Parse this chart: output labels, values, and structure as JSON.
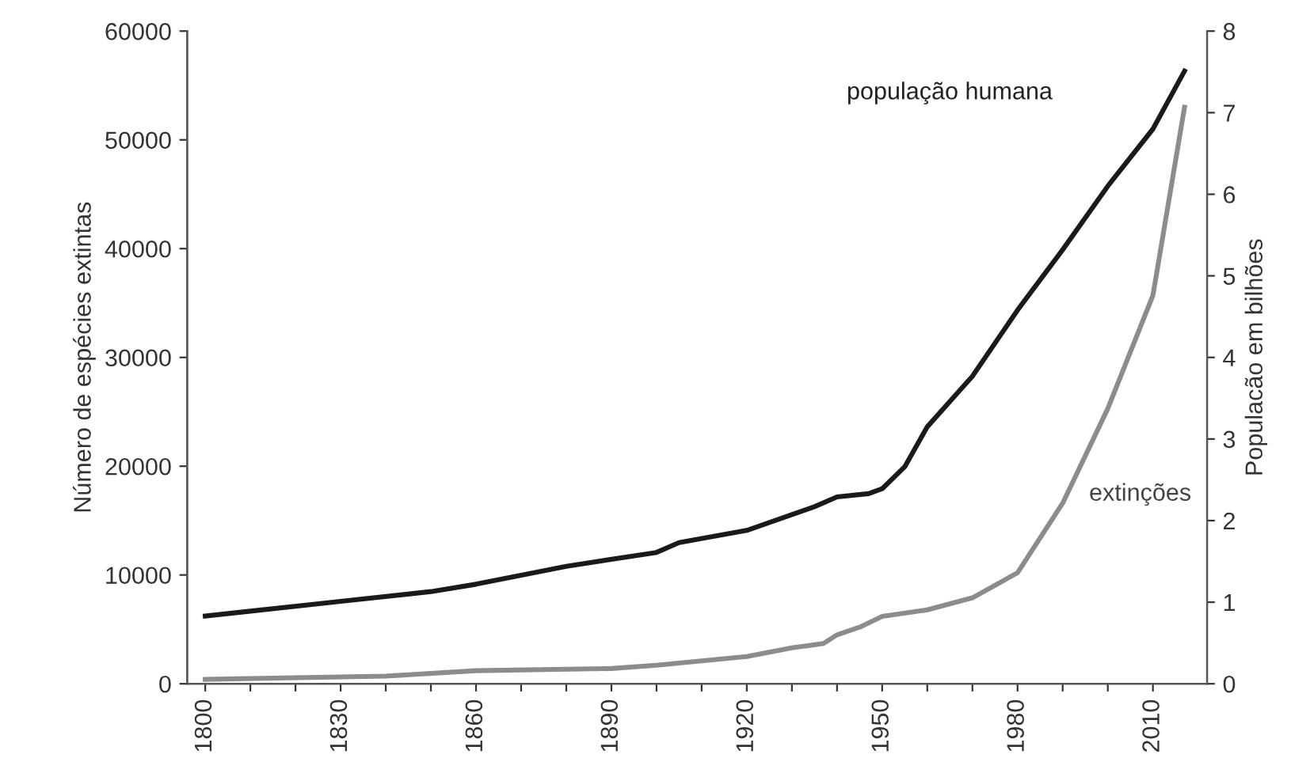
{
  "chart_data": {
    "type": "line",
    "xlabel": null,
    "ylabel": "Número de espécies extintas",
    "y2label": "Populacão em bilhões",
    "xlim": [
      1796,
      2022
    ],
    "ylim": [
      0,
      60000
    ],
    "y2lim": [
      0,
      8
    ],
    "xticks": [
      1800,
      {
        "value": 1810,
        "label": null
      },
      {
        "value": 1820,
        "label": null
      },
      1830,
      {
        "value": 1840,
        "label": null
      },
      {
        "value": 1850,
        "label": null
      },
      1860,
      {
        "value": 1870,
        "label": null
      },
      {
        "value": 1880,
        "label": null
      },
      1890,
      {
        "value": 1900,
        "label": null
      },
      {
        "value": 1910,
        "label": null
      },
      1920,
      {
        "value": 1930,
        "label": null
      },
      {
        "value": 1940,
        "label": null
      },
      1950,
      {
        "value": 1960,
        "label": null
      },
      {
        "value": 1970,
        "label": null
      },
      1980,
      {
        "value": 1990,
        "label": null
      },
      {
        "value": 2000,
        "label": null
      },
      2010
    ],
    "yticks": [
      0,
      10000,
      20000,
      30000,
      40000,
      50000,
      60000
    ],
    "y2ticks": [
      0,
      1,
      2,
      3,
      4,
      5,
      6,
      7,
      8
    ],
    "grid": false,
    "series": [
      {
        "name": "população humana",
        "color": "#1a1a1a",
        "axis": "y2",
        "x": [
          1800,
          1810,
          1830,
          1850,
          1860,
          1880,
          1900,
          1905,
          1920,
          1935,
          1940,
          1947,
          1950,
          1955,
          1960,
          1970,
          1980,
          1990,
          2000,
          2010,
          2017
        ],
        "values": [
          0.83,
          0.89,
          1.01,
          1.13,
          1.22,
          1.44,
          1.61,
          1.73,
          1.88,
          2.17,
          2.29,
          2.33,
          2.39,
          2.66,
          3.15,
          3.77,
          4.58,
          5.32,
          6.1,
          6.8,
          7.51
        ]
      },
      {
        "name": "extinções",
        "color": "#8c8c8c",
        "axis": "y",
        "x": [
          1800,
          1840,
          1860,
          1890,
          1900,
          1920,
          1930,
          1937,
          1940,
          1945,
          1950,
          1960,
          1970,
          1980,
          1990,
          2000,
          2010,
          2017
        ],
        "values": [
          400,
          700,
          1200,
          1400,
          1700,
          2500,
          3300,
          3700,
          4500,
          5200,
          6200,
          6800,
          7900,
          10200,
          16600,
          25300,
          35700,
          53000
        ]
      }
    ]
  }
}
